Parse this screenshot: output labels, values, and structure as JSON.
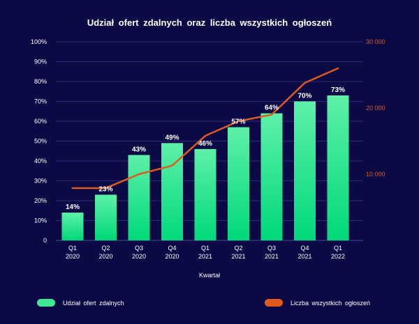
{
  "chart_data": {
    "type": "bar",
    "title": "Udział ofert zdalnych oraz liczba wszystkich ogłoszeń",
    "xlabel": "Kwartał",
    "categories": [
      [
        "Q1",
        "2020"
      ],
      [
        "Q2",
        "2020"
      ],
      [
        "Q3",
        "2020"
      ],
      [
        "Q4",
        "2020"
      ],
      [
        "Q1",
        "2021"
      ],
      [
        "Q2",
        "2021"
      ],
      [
        "Q3",
        "2021"
      ],
      [
        "Q4",
        "2021"
      ],
      [
        "Q1",
        "2022"
      ]
    ],
    "left_axis": {
      "ticks": [
        "0",
        "10%",
        "20%",
        "30%",
        "40%",
        "50%",
        "60%",
        "70%",
        "80%",
        "90%",
        "100%"
      ],
      "ylim": [
        0,
        100
      ]
    },
    "right_axis": {
      "ticks": [
        "10 000",
        "20 000",
        "30 000"
      ],
      "tick_values": [
        10000,
        20000,
        30000
      ],
      "ylim": [
        0,
        30000
      ]
    },
    "grid": true,
    "series": [
      {
        "name": "Udział ofert zdalnych",
        "type": "bar",
        "axis": "left",
        "values": [
          14,
          23,
          43,
          49,
          46,
          57,
          64,
          70,
          73
        ],
        "labels": [
          "14%",
          "23%",
          "43%",
          "49%",
          "46%",
          "57%",
          "64%",
          "70%",
          "73%"
        ],
        "color_top": "#5ef0a8",
        "color_bottom": "#00d97a"
      },
      {
        "name": "Liczba wszystkich ogłoszeń",
        "type": "line",
        "axis": "right",
        "values": [
          7900,
          7900,
          10000,
          11300,
          15800,
          18000,
          19000,
          23800,
          26000
        ],
        "color": "#e05a1e"
      }
    ],
    "legend_position": "bottom"
  },
  "colors": {
    "background": "#0b0a45",
    "grid": "#2c2c7a",
    "text": "#ffffff",
    "right_axis_text": "#e05a1e"
  }
}
